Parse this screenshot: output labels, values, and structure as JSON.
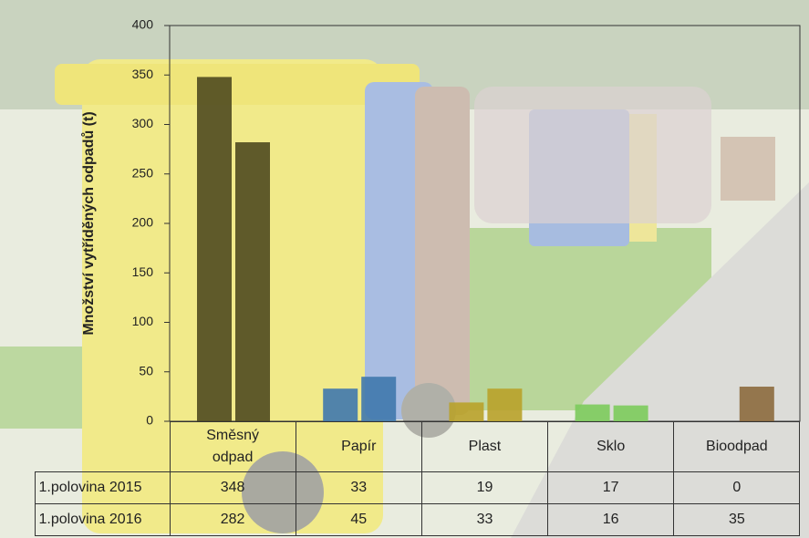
{
  "chart_data": {
    "type": "bar",
    "y_label": "Množství vytříděných odpadů (t)",
    "categories": [
      "Směsný odpad",
      "Papír",
      "Plast",
      "Sklo",
      "Bioodpad"
    ],
    "colors": [
      "#4f4a1f",
      "#3f78ad",
      "#b9a22a",
      "#7ccb5c",
      "#8c6a3e"
    ],
    "series": [
      {
        "name": "1.polovina 2015",
        "values": [
          348,
          33,
          19,
          17,
          0
        ]
      },
      {
        "name": "1.polovina 2016",
        "values": [
          282,
          45,
          33,
          16,
          35
        ]
      }
    ],
    "ylim": [
      0,
      400
    ],
    "yticks": [
      0,
      50,
      100,
      150,
      200,
      250,
      300,
      350,
      400
    ]
  }
}
